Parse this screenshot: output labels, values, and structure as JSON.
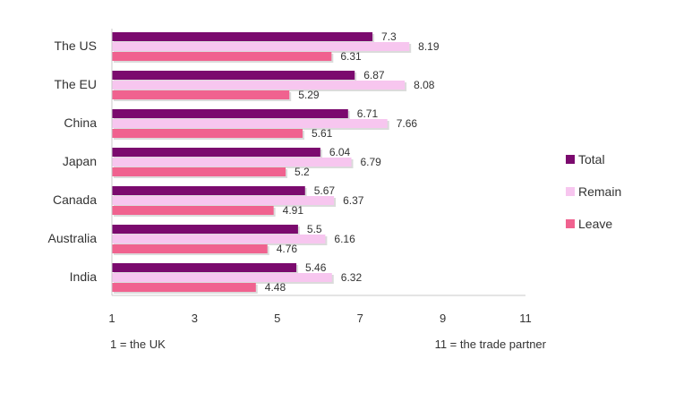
{
  "chart_data": {
    "type": "bar",
    "orientation": "horizontal",
    "categories": [
      "The US",
      "The EU",
      "China",
      "Japan",
      "Canada",
      "Australia",
      "India"
    ],
    "series": [
      {
        "name": "Total",
        "values": [
          7.3,
          6.87,
          6.71,
          6.04,
          5.67,
          5.5,
          5.46
        ],
        "value_labels": [
          "7.3",
          "6.87",
          "6.71",
          "6.04",
          "5.67",
          "5.5",
          "5.46"
        ]
      },
      {
        "name": "Remain",
        "values": [
          8.19,
          8.08,
          7.66,
          6.79,
          6.37,
          6.16,
          6.32
        ],
        "value_labels": [
          "8.19",
          "8.08",
          "7.66",
          "6.79",
          "6.37",
          "6.16",
          "6.32"
        ]
      },
      {
        "name": "Leave",
        "values": [
          6.31,
          5.29,
          5.61,
          5.2,
          4.91,
          4.76,
          4.48
        ],
        "value_labels": [
          "6.31",
          "5.29",
          "5.61",
          "5.2",
          "4.91",
          "4.76",
          "4.48"
        ]
      }
    ],
    "xlim": [
      1,
      11
    ],
    "xticks": [
      "1",
      "3",
      "5",
      "7",
      "9",
      "11"
    ],
    "axis_notes": {
      "left": "1 = the UK",
      "right": "11 = the trade partner"
    },
    "legend_position": "right",
    "grid": false,
    "colors": {
      "Total": "#7b0a6e",
      "Remain": "#f7c6ef",
      "Leave": "#f0628f"
    }
  }
}
